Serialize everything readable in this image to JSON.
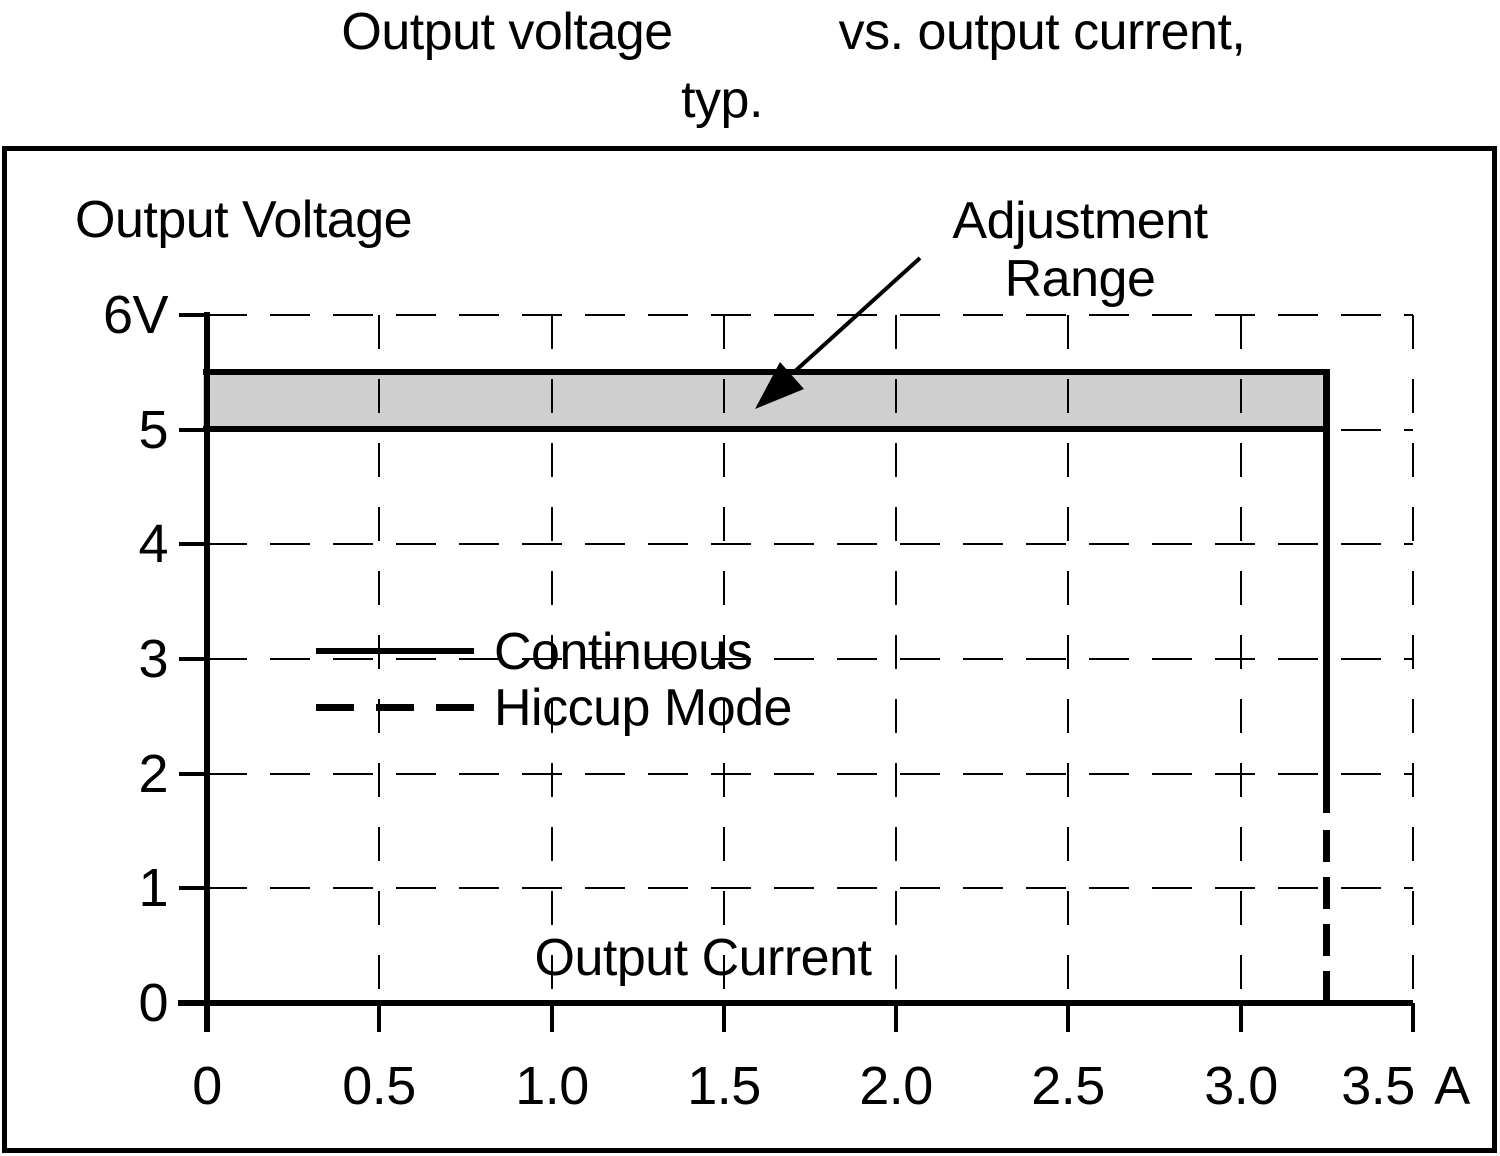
{
  "title": {
    "part1": "Output voltage",
    "part2": "vs. output current,",
    "line2": "typ."
  },
  "axes": {
    "y_label": "Output Voltage",
    "x_label": "Output Current",
    "x_unit": "A",
    "y_tick_labels": [
      "0",
      "1",
      "2",
      "3",
      "4",
      "5",
      "6V"
    ],
    "x_tick_labels": [
      "0",
      "0.5",
      "1.0",
      "1.5",
      "2.0",
      "2.5",
      "3.0",
      "3.5"
    ]
  },
  "legend": [
    {
      "label": "Continuous",
      "style": "solid"
    },
    {
      "label": "Hiccup Mode",
      "style": "dashed"
    }
  ],
  "annotation": {
    "line1": "Adjustment",
    "line2": "Range"
  },
  "colors": {
    "line": "#000000",
    "band_fill": "#cfcfcf",
    "background": "#ffffff"
  },
  "chart_data": {
    "type": "line",
    "title": "Output voltage vs. output current, typ.",
    "xlabel": "Output Current",
    "ylabel": "Output Voltage",
    "x_unit": "A",
    "y_unit": "V",
    "xlim": [
      0,
      3.5
    ],
    "ylim": [
      0,
      6
    ],
    "x_ticks": [
      0,
      0.5,
      1.0,
      1.5,
      2.0,
      2.5,
      3.0,
      3.5
    ],
    "y_ticks": [
      0,
      1,
      2,
      3,
      4,
      5,
      6
    ],
    "x_gridlines": [
      0.5,
      1.0,
      1.5,
      2.0,
      2.5,
      3.0,
      3.5
    ],
    "y_gridlines": [
      1,
      2,
      3,
      4,
      5,
      6
    ],
    "grid": "dashed",
    "legend_position": "inside-middle-left",
    "adjustment_range": {
      "v_min": 5.0,
      "v_max": 5.5,
      "i_min": 0,
      "i_max": 3.25
    },
    "series": [
      {
        "name": "Continuous",
        "style": "solid",
        "points": [
          [
            0,
            5.5
          ],
          [
            3.25,
            5.5
          ],
          [
            3.25,
            1.65
          ]
        ]
      },
      {
        "name": "Hiccup Mode",
        "style": "dashed",
        "points": [
          [
            3.25,
            1.65
          ],
          [
            3.25,
            0
          ]
        ]
      }
    ]
  }
}
